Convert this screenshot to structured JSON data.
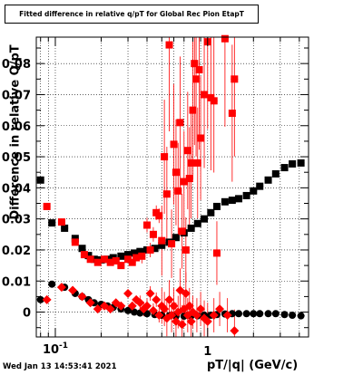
{
  "title": "Fitted difference in relative q/pT  for Global Rec Pion EtapT",
  "timestamp": "Wed Jan 13 14:53:41 2021",
  "chart_data": {
    "type": "scatter",
    "title": "Fitted difference in relative q/pT  for Global Rec Pion EtapT",
    "xlabel": "pT/|q| (GeV/c)",
    "ylabel": "Difference in relative Q/pT",
    "x_scale": "log",
    "xlim": [
      0.075,
      4.6
    ],
    "ylim": [
      -0.008,
      0.0885
    ],
    "grid": true,
    "x_tick_labels": [
      "10^-1",
      "1"
    ],
    "y_ticks": [
      0,
      0.01,
      0.02,
      0.03,
      0.04,
      0.05,
      0.06,
      0.07,
      0.08
    ],
    "y_tick_labels": [
      "0",
      "0.01",
      "0.02",
      "0.03",
      "0.04",
      "0.05",
      "0.06",
      "0.07",
      "0.08"
    ],
    "series": [
      {
        "color": "#000000",
        "marker": "square",
        "role": "mean",
        "points": [
          [
            0.08,
            0.0425
          ],
          [
            0.095,
            0.0287
          ],
          [
            0.115,
            0.027
          ],
          [
            0.135,
            0.0237
          ],
          [
            0.15,
            0.0205
          ],
          [
            0.165,
            0.0182
          ],
          [
            0.18,
            0.017
          ],
          [
            0.2,
            0.0168
          ],
          [
            0.22,
            0.017
          ],
          [
            0.24,
            0.0175
          ],
          [
            0.27,
            0.018
          ],
          [
            0.3,
            0.0185
          ],
          [
            0.33,
            0.019
          ],
          [
            0.36,
            0.0195
          ],
          [
            0.4,
            0.02
          ],
          [
            0.45,
            0.0205
          ],
          [
            0.5,
            0.0215
          ],
          [
            0.56,
            0.0225
          ],
          [
            0.62,
            0.024
          ],
          [
            0.7,
            0.0255
          ],
          [
            0.78,
            0.027
          ],
          [
            0.86,
            0.0285
          ],
          [
            0.95,
            0.03
          ],
          [
            1.05,
            0.032
          ],
          [
            1.15,
            0.034
          ],
          [
            1.3,
            0.0355
          ],
          [
            1.45,
            0.036
          ],
          [
            1.6,
            0.0365
          ],
          [
            1.8,
            0.0375
          ],
          [
            2.0,
            0.039
          ],
          [
            2.2,
            0.0405
          ],
          [
            2.5,
            0.0425
          ],
          [
            2.8,
            0.0445
          ],
          [
            3.2,
            0.0465
          ],
          [
            3.6,
            0.0477
          ],
          [
            4.1,
            0.048
          ]
        ]
      },
      {
        "color": "#000000",
        "marker": "circle",
        "role": "sigma",
        "points": [
          [
            0.08,
            0.004
          ],
          [
            0.095,
            0.009
          ],
          [
            0.115,
            0.008
          ],
          [
            0.135,
            0.006
          ],
          [
            0.15,
            0.005
          ],
          [
            0.165,
            0.004
          ],
          [
            0.18,
            0.003
          ],
          [
            0.2,
            0.0025
          ],
          [
            0.22,
            0.002
          ],
          [
            0.24,
            0.0015
          ],
          [
            0.27,
            0.001
          ],
          [
            0.3,
            0.0005
          ],
          [
            0.33,
            0.0
          ],
          [
            0.36,
            -0.0003
          ],
          [
            0.4,
            -0.0005
          ],
          [
            0.45,
            -0.0008
          ],
          [
            0.5,
            -0.001
          ],
          [
            0.56,
            -0.0012
          ],
          [
            0.62,
            -0.0013
          ],
          [
            0.7,
            -0.0013
          ],
          [
            0.78,
            -0.0012
          ],
          [
            0.86,
            -0.0012
          ],
          [
            0.95,
            -0.001
          ],
          [
            1.05,
            -0.001
          ],
          [
            1.15,
            -0.0008
          ],
          [
            1.3,
            -0.0006
          ],
          [
            1.45,
            -0.0005
          ],
          [
            1.6,
            -0.0005
          ],
          [
            1.8,
            -0.0005
          ],
          [
            2.0,
            -0.0005
          ],
          [
            2.2,
            -0.0005
          ],
          [
            2.5,
            -0.0005
          ],
          [
            2.8,
            -0.0005
          ],
          [
            3.2,
            -0.0008
          ],
          [
            3.6,
            -0.001
          ],
          [
            4.1,
            -0.0012
          ]
        ]
      },
      {
        "color": "#ff0000",
        "marker": "square",
        "role": "mean",
        "points": [
          [
            0.088,
            0.034
          ],
          [
            0.11,
            0.029
          ],
          [
            0.135,
            0.0225
          ],
          [
            0.155,
            0.0185
          ],
          [
            0.17,
            0.017
          ],
          [
            0.19,
            0.016
          ],
          [
            0.21,
            0.017
          ],
          [
            0.23,
            0.016
          ],
          [
            0.25,
            0.0165
          ],
          [
            0.27,
            0.015
          ],
          [
            0.3,
            0.017
          ],
          [
            0.32,
            0.016
          ],
          [
            0.34,
            0.0175
          ],
          [
            0.37,
            0.018
          ],
          [
            0.4,
            0.028
          ],
          [
            0.42,
            0.02
          ],
          [
            0.44,
            0.025
          ],
          [
            0.46,
            0.032
          ],
          [
            0.48,
            0.031
          ],
          [
            0.5,
            0.023
          ],
          [
            0.52,
            0.05
          ],
          [
            0.54,
            0.038
          ],
          [
            0.56,
            0.086
          ],
          [
            0.58,
            0.022
          ],
          [
            0.6,
            0.054
          ],
          [
            0.62,
            0.045
          ],
          [
            0.64,
            0.039
          ],
          [
            0.66,
            0.061
          ],
          [
            0.68,
            0.026
          ],
          [
            0.7,
            0.042
          ],
          [
            0.72,
            0.02
          ],
          [
            0.74,
            0.052
          ],
          [
            0.76,
            0.043
          ],
          [
            0.78,
            0.048
          ],
          [
            0.8,
            0.065
          ],
          [
            0.82,
            0.08
          ],
          [
            0.84,
            0.075
          ],
          [
            0.86,
            0.048
          ],
          [
            0.88,
            0.078
          ],
          [
            0.9,
            0.056
          ],
          [
            0.95,
            0.07
          ],
          [
            1.0,
            0.087
          ],
          [
            1.05,
            0.069
          ],
          [
            1.1,
            0.068
          ],
          [
            1.15,
            0.019
          ],
          [
            1.3,
            0.088
          ],
          [
            1.45,
            0.064
          ],
          [
            1.5,
            0.075
          ]
        ]
      },
      {
        "color": "#ff0000",
        "marker": "diamond",
        "role": "sigma",
        "points": [
          [
            0.088,
            0.004
          ],
          [
            0.11,
            0.008
          ],
          [
            0.13,
            0.007
          ],
          [
            0.15,
            0.005
          ],
          [
            0.17,
            0.003
          ],
          [
            0.19,
            0.001
          ],
          [
            0.21,
            0.002
          ],
          [
            0.23,
            0.001
          ],
          [
            0.25,
            0.003
          ],
          [
            0.27,
            0.002
          ],
          [
            0.3,
            0.006
          ],
          [
            0.32,
            0.002
          ],
          [
            0.34,
            0.004
          ],
          [
            0.36,
            0.003
          ],
          [
            0.38,
            0.001
          ],
          [
            0.4,
            0.002
          ],
          [
            0.42,
            0.006
          ],
          [
            0.44,
            0.0005
          ],
          [
            0.46,
            0.004
          ],
          [
            0.48,
            -0.001
          ],
          [
            0.5,
            0.002
          ],
          [
            0.52,
            0.001
          ],
          [
            0.54,
            -0.002
          ],
          [
            0.56,
            0.004
          ],
          [
            0.58,
            -0.001
          ],
          [
            0.6,
            0.002
          ],
          [
            0.62,
            -0.003
          ],
          [
            0.64,
            0.0
          ],
          [
            0.66,
            0.007
          ],
          [
            0.68,
            -0.004
          ],
          [
            0.7,
            0.001
          ],
          [
            0.72,
            0.006
          ],
          [
            0.74,
            -0.001
          ],
          [
            0.76,
            0.002
          ],
          [
            0.78,
            -0.003
          ],
          [
            0.8,
            0.0
          ],
          [
            0.85,
            -0.001
          ],
          [
            0.9,
            0.001
          ],
          [
            0.95,
            -0.002
          ],
          [
            1.0,
            -0.003
          ],
          [
            1.1,
            -0.001
          ],
          [
            1.2,
            0.001
          ],
          [
            1.35,
            -0.001
          ],
          [
            1.5,
            -0.006
          ]
        ]
      }
    ]
  }
}
